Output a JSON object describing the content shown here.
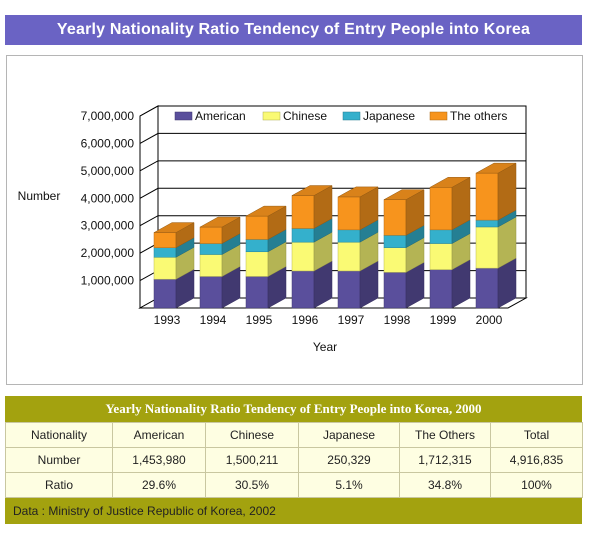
{
  "page": {
    "title": "Yearly Nationality Ratio Tendency of Entry People into Korea"
  },
  "chart_data": {
    "type": "bar",
    "stacked": true,
    "three_d": true,
    "categories": [
      "1993",
      "1994",
      "1995",
      "1996",
      "1997",
      "1998",
      "1999",
      "2000"
    ],
    "series": [
      {
        "name": "American",
        "color": "#5a4f9c",
        "values": [
          1050000,
          1150000,
          1150000,
          1350000,
          1350000,
          1300000,
          1400000,
          1453980
        ]
      },
      {
        "name": "Chinese",
        "color": "#fafa74",
        "values": [
          800000,
          800000,
          900000,
          1050000,
          1050000,
          900000,
          950000,
          1500211
        ]
      },
      {
        "name": "Japanese",
        "color": "#34b0cc",
        "values": [
          350000,
          400000,
          450000,
          500000,
          450000,
          450000,
          500000,
          250329
        ]
      },
      {
        "name": "The others",
        "color": "#f7941d",
        "values": [
          550000,
          600000,
          850000,
          1200000,
          1200000,
          1300000,
          1550000,
          1712315
        ]
      }
    ],
    "ylabel": "Number",
    "xlabel": "Year",
    "ylim": [
      0,
      7000000
    ],
    "yticks": [
      "1,000,000",
      "2,000,000",
      "3,000,000",
      "4,000,000",
      "5,000,000",
      "6,000,000",
      "7,000,000"
    ],
    "grid": true,
    "legend_position": "top"
  },
  "table": {
    "title": "Yearly Nationality Ratio Tendency of Entry People  into Korea, 2000",
    "header": [
      "Nationality",
      "American",
      "Chinese",
      "Japanese",
      "The Others",
      "Total"
    ],
    "rows": [
      [
        "Number",
        "1,453,980",
        "1,500,211",
        "250,329",
        "1,712,315",
        "4,916,835"
      ],
      [
        "Ratio",
        "29.6%",
        "30.5%",
        "5.1%",
        "34.8%",
        "100%"
      ]
    ],
    "footer": "Data : Ministry of Justice Republic of Korea, 2002"
  }
}
